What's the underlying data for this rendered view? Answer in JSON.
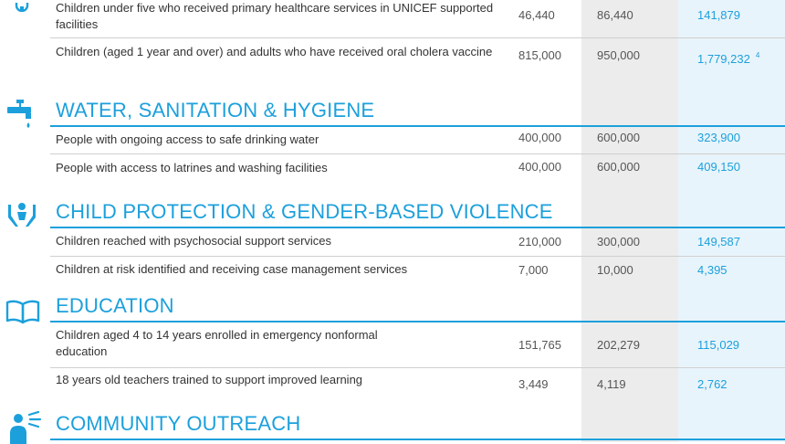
{
  "colors": {
    "accent": "#1ca0dc",
    "text": "#333333",
    "rule": "#cfcfcf",
    "target_column_shade": "#ececec",
    "results_column_shade": "#e8f4fb"
  },
  "health_rows": [
    {
      "label": "Children under five who received primary healthcare services in UNICEF supported facilities",
      "sector_target": "46,440",
      "unicef_target": "86,440",
      "unicef_result": "141,879",
      "note": ""
    },
    {
      "label": "Children (aged 1 year and over) and adults who have received oral cholera vaccine",
      "sector_target": "815,000",
      "unicef_target": "950,000",
      "unicef_result": "1,779,232",
      "note": "4"
    }
  ],
  "sections": {
    "wash": {
      "title": "WATER, SANITATION & HYGIENE",
      "icon": "water-tap-icon",
      "rows": [
        {
          "label": "People with ongoing access to safe drinking water",
          "sector_target": "400,000",
          "unicef_target": "600,000",
          "unicef_result": "323,900"
        },
        {
          "label": "People with access to latrines and washing facilities",
          "sector_target": "400,000",
          "unicef_target": "600,000",
          "unicef_result": "409,150"
        }
      ]
    },
    "child_protection": {
      "title": "CHILD PROTECTION & GENDER-BASED VIOLENCE",
      "icon": "hands-child-icon",
      "rows": [
        {
          "label": "Children reached with psychosocial support services",
          "sector_target": "210,000",
          "unicef_target": "300,000",
          "unicef_result": "149,587"
        },
        {
          "label": "Children at risk identified and receiving case management services",
          "sector_target": "7,000",
          "unicef_target": "10,000",
          "unicef_result": "4,395"
        }
      ]
    },
    "education": {
      "title": "EDUCATION",
      "icon": "open-book-icon",
      "rows": [
        {
          "label": "Children aged 4 to 14 years enrolled in emergency nonformal education",
          "sector_target": "151,765",
          "unicef_target": "202,279",
          "unicef_result": "115,029"
        },
        {
          "label": "18 years old teachers trained to support improved learning",
          "sector_target": "3,449",
          "unicef_target": "4,119",
          "unicef_result": "2,762"
        }
      ]
    },
    "community": {
      "title": "COMMUNITY OUTREACH",
      "icon": "megaphone-person-icon"
    }
  }
}
